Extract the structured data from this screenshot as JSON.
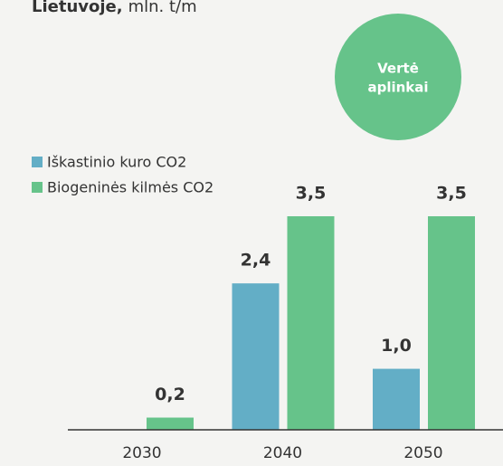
{
  "chart_data": {
    "type": "bar",
    "title": {
      "bold": "Lietuvoje,",
      "rest": "mln. t/m"
    },
    "badge": {
      "lines": [
        "Vertė",
        "aplinkai"
      ],
      "color": "#66c38a"
    },
    "categories": [
      "2030",
      "2040",
      "2050"
    ],
    "series": [
      {
        "name": "Iškastinio kuro CO2",
        "color": "#63aec6",
        "values": [
          null,
          2.4,
          1.0
        ],
        "value_labels": [
          null,
          "2,4",
          "1,0"
        ]
      },
      {
        "name": "Biogeninės kilmės CO2",
        "color": "#66c38a",
        "values": [
          0.2,
          3.5,
          3.5
        ],
        "value_labels": [
          "0,2",
          "3,5",
          "3,5"
        ]
      }
    ],
    "legend": "top-left"
  }
}
